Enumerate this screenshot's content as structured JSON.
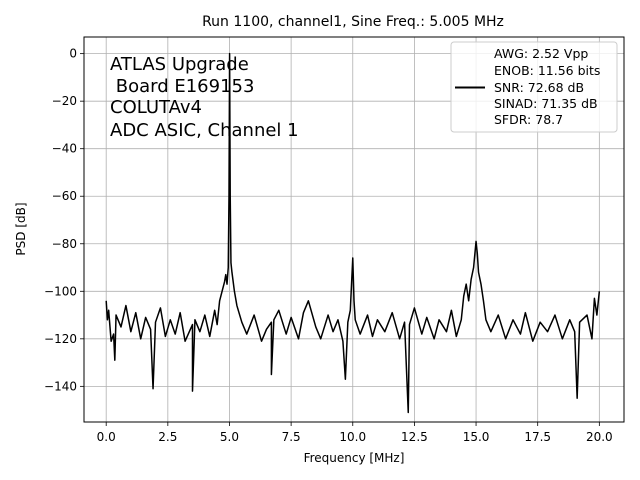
{
  "chart_data": {
    "type": "line",
    "title": "Run 1100, channel1, Sine Freq.: 5.005 MHz",
    "xlabel": "Frequency [MHz]",
    "ylabel": "PSD [dB]",
    "xlim": [
      -0.9,
      21.0
    ],
    "ylim": [
      -155,
      7
    ],
    "xticks": [
      0.0,
      2.5,
      5.0,
      7.5,
      10.0,
      12.5,
      15.0,
      17.5,
      20.0
    ],
    "xtick_labels": [
      "0.0",
      "2.5",
      "5.0",
      "7.5",
      "10.0",
      "12.5",
      "15.0",
      "17.5",
      "20.0"
    ],
    "yticks": [
      0,
      -20,
      -40,
      -60,
      -80,
      -100,
      -120,
      -140
    ],
    "ytick_labels": [
      "0",
      "−20",
      "−40",
      "−60",
      "−80",
      "−100",
      "−120",
      "−140"
    ],
    "grid": true,
    "line_color": "#000000",
    "annotation": [
      "ATLAS Upgrade",
      " Board E169153",
      "COLUTAv4",
      "ADC ASIC, Channel 1"
    ],
    "legend": {
      "placement": "top-right",
      "entries": [
        "AWG: 2.52 Vpp",
        "ENOB: 11.56 bits",
        "SNR: 72.68 dB",
        "SINAD: 71.35 dB",
        "SFDR: 78.7"
      ]
    },
    "series": [
      {
        "points": [
          [
            0.0,
            -104
          ],
          [
            0.05,
            -112
          ],
          [
            0.1,
            -108
          ],
          [
            0.2,
            -121
          ],
          [
            0.3,
            -118
          ],
          [
            0.35,
            -129
          ],
          [
            0.4,
            -110
          ],
          [
            0.6,
            -115
          ],
          [
            0.8,
            -106
          ],
          [
            1.0,
            -117
          ],
          [
            1.2,
            -109
          ],
          [
            1.4,
            -120
          ],
          [
            1.6,
            -111
          ],
          [
            1.8,
            -116
          ],
          [
            1.9,
            -141
          ],
          [
            2.0,
            -113
          ],
          [
            2.2,
            -107
          ],
          [
            2.4,
            -119
          ],
          [
            2.6,
            -112
          ],
          [
            2.8,
            -118
          ],
          [
            3.0,
            -109
          ],
          [
            3.2,
            -121
          ],
          [
            3.5,
            -114
          ],
          [
            3.5,
            -142
          ],
          [
            3.6,
            -112
          ],
          [
            3.8,
            -117
          ],
          [
            4.0,
            -110
          ],
          [
            4.2,
            -119
          ],
          [
            4.4,
            -108
          ],
          [
            4.5,
            -114
          ],
          [
            4.6,
            -104
          ],
          [
            4.7,
            -100
          ],
          [
            4.8,
            -96
          ],
          [
            4.85,
            -93
          ],
          [
            4.9,
            -97
          ],
          [
            4.95,
            -90
          ],
          [
            4.98,
            -60
          ],
          [
            5.005,
            0
          ],
          [
            5.03,
            -60
          ],
          [
            5.06,
            -88
          ],
          [
            5.1,
            -92
          ],
          [
            5.15,
            -96
          ],
          [
            5.2,
            -100
          ],
          [
            5.3,
            -106
          ],
          [
            5.5,
            -113
          ],
          [
            5.7,
            -118
          ],
          [
            6.0,
            -110
          ],
          [
            6.3,
            -121
          ],
          [
            6.5,
            -116
          ],
          [
            6.7,
            -113
          ],
          [
            6.7,
            -135
          ],
          [
            6.8,
            -112
          ],
          [
            7.0,
            -108
          ],
          [
            7.3,
            -118
          ],
          [
            7.5,
            -111
          ],
          [
            7.8,
            -120
          ],
          [
            8.0,
            -109
          ],
          [
            8.2,
            -104
          ],
          [
            8.5,
            -115
          ],
          [
            8.7,
            -120
          ],
          [
            9.0,
            -110
          ],
          [
            9.2,
            -117
          ],
          [
            9.4,
            -112
          ],
          [
            9.6,
            -121
          ],
          [
            9.7,
            -137
          ],
          [
            9.8,
            -113
          ],
          [
            9.9,
            -108
          ],
          [
            10.0,
            -86
          ],
          [
            10.05,
            -104
          ],
          [
            10.1,
            -112
          ],
          [
            10.3,
            -118
          ],
          [
            10.6,
            -110
          ],
          [
            10.8,
            -119
          ],
          [
            11.0,
            -112
          ],
          [
            11.3,
            -117
          ],
          [
            11.6,
            -109
          ],
          [
            11.9,
            -120
          ],
          [
            12.1,
            -113
          ],
          [
            12.25,
            -151
          ],
          [
            12.3,
            -114
          ],
          [
            12.5,
            -107
          ],
          [
            12.8,
            -118
          ],
          [
            13.0,
            -111
          ],
          [
            13.3,
            -120
          ],
          [
            13.5,
            -112
          ],
          [
            13.8,
            -117
          ],
          [
            14.0,
            -108
          ],
          [
            14.2,
            -119
          ],
          [
            14.4,
            -112
          ],
          [
            14.5,
            -102
          ],
          [
            14.6,
            -97
          ],
          [
            14.7,
            -104
          ],
          [
            14.8,
            -95
          ],
          [
            14.9,
            -90
          ],
          [
            15.0,
            -79
          ],
          [
            15.05,
            -84
          ],
          [
            15.1,
            -92
          ],
          [
            15.2,
            -97
          ],
          [
            15.3,
            -104
          ],
          [
            15.4,
            -112
          ],
          [
            15.6,
            -117
          ],
          [
            15.9,
            -110
          ],
          [
            16.2,
            -120
          ],
          [
            16.5,
            -112
          ],
          [
            16.8,
            -118
          ],
          [
            17.0,
            -109
          ],
          [
            17.3,
            -121
          ],
          [
            17.6,
            -113
          ],
          [
            17.9,
            -117
          ],
          [
            18.2,
            -110
          ],
          [
            18.5,
            -120
          ],
          [
            18.8,
            -112
          ],
          [
            19.0,
            -117
          ],
          [
            19.1,
            -145
          ],
          [
            19.2,
            -113
          ],
          [
            19.5,
            -110
          ],
          [
            19.7,
            -120
          ],
          [
            19.8,
            -103
          ],
          [
            19.9,
            -110
          ],
          [
            20.0,
            -100
          ]
        ]
      }
    ]
  }
}
